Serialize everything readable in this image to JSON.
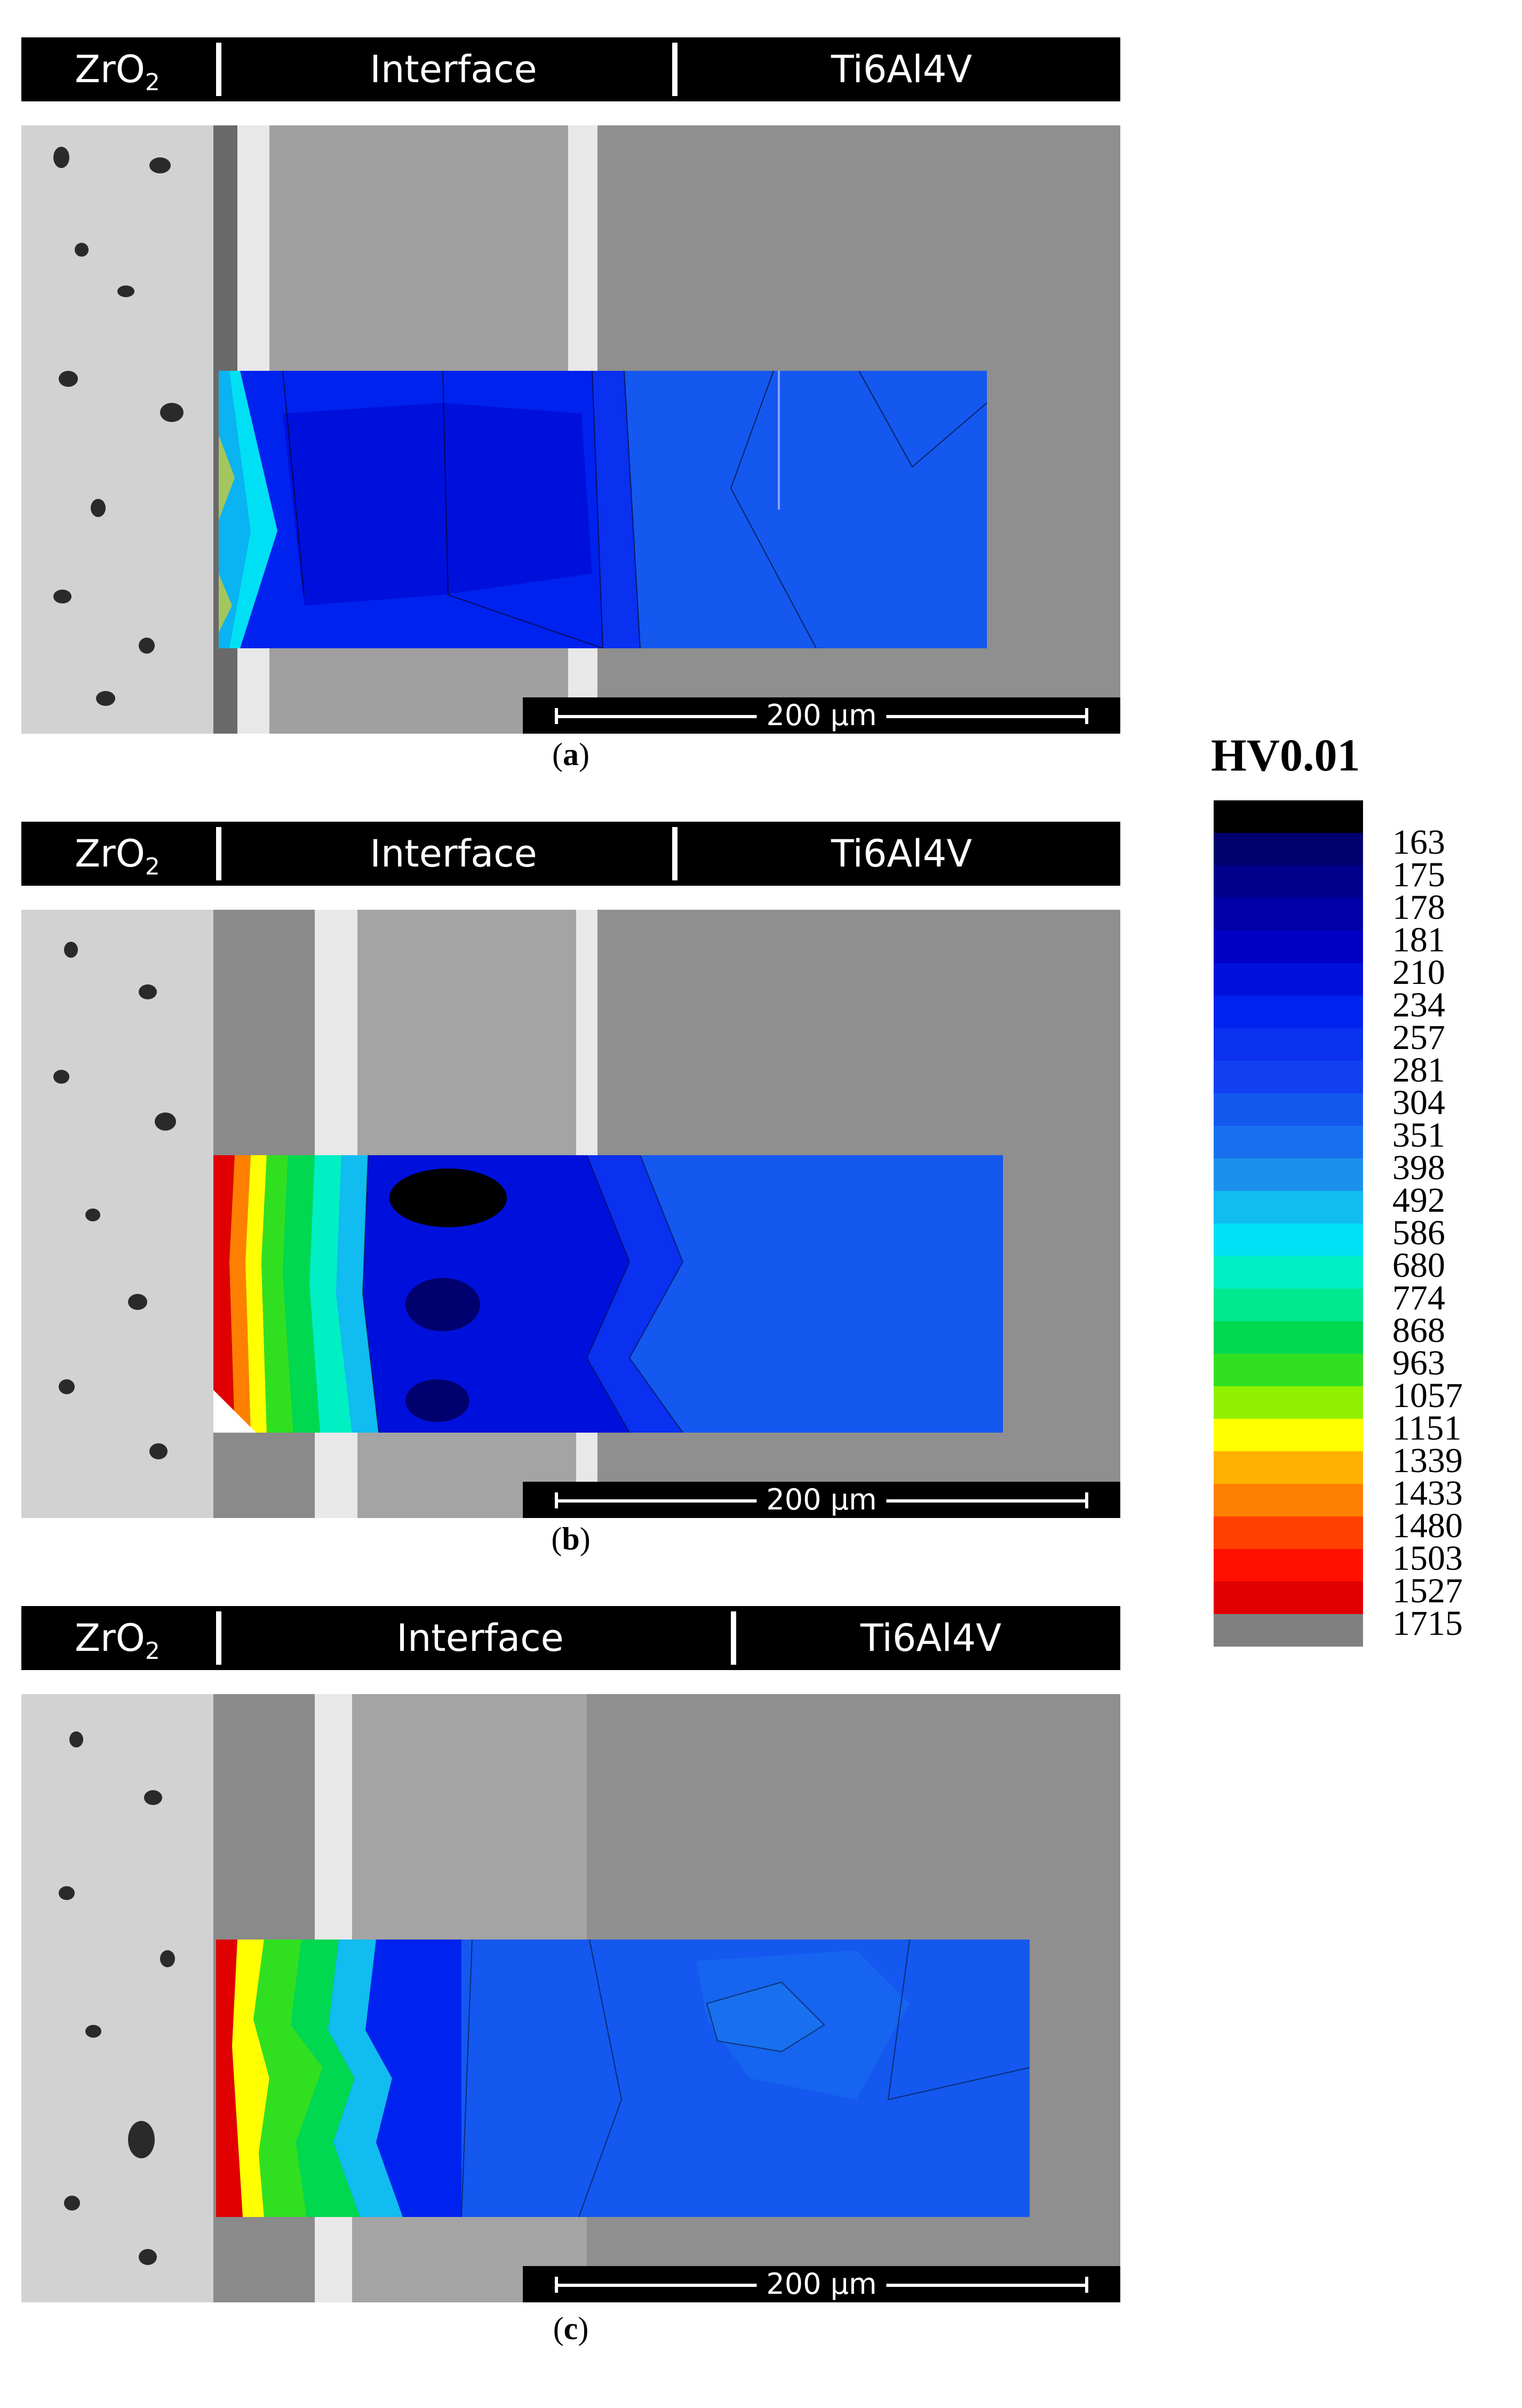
{
  "panels": [
    {
      "header": {
        "left": "ZrO",
        "left_sub": "2",
        "middle": "Interface",
        "right": "Ti6Al4V"
      },
      "scale_label": "200 µm",
      "caption_open": "(",
      "caption_letter": "a",
      "caption_close": ")"
    },
    {
      "header": {
        "left": "ZrO",
        "left_sub": "2",
        "middle": "Interface",
        "right": "Ti6Al4V"
      },
      "scale_label": "200 µm",
      "caption_open": "(",
      "caption_letter": "b",
      "caption_close": ")"
    },
    {
      "header": {
        "left": "ZrO",
        "left_sub": "2",
        "middle": "Interface",
        "right": "Ti6Al4V"
      },
      "scale_label": "200 µm",
      "caption_open": "(",
      "caption_letter": "c",
      "caption_close": ")"
    }
  ],
  "legend": {
    "title": "HV0.01",
    "labels": [
      "163",
      "175",
      "178",
      "181",
      "210",
      "234",
      "257",
      "281",
      "304",
      "351",
      "398",
      "492",
      "586",
      "680",
      "774",
      "868",
      "963",
      "1057",
      "1151",
      "1339",
      "1433",
      "1480",
      "1503",
      "1527",
      "1715"
    ],
    "colors": [
      "#000000",
      "#00006e",
      "#00008c",
      "#0000a8",
      "#0000c4",
      "#0010dc",
      "#0022ee",
      "#0a30f0",
      "#1040f0",
      "#1458f0",
      "#1870ee",
      "#1c90ec",
      "#10bcf0",
      "#00e0f4",
      "#00f0c4",
      "#00e890",
      "#00d850",
      "#30e020",
      "#90f000",
      "#ffff00",
      "#ffb000",
      "#ff8000",
      "#ff4000",
      "#ff1000",
      "#e00000",
      "#808080"
    ]
  }
}
